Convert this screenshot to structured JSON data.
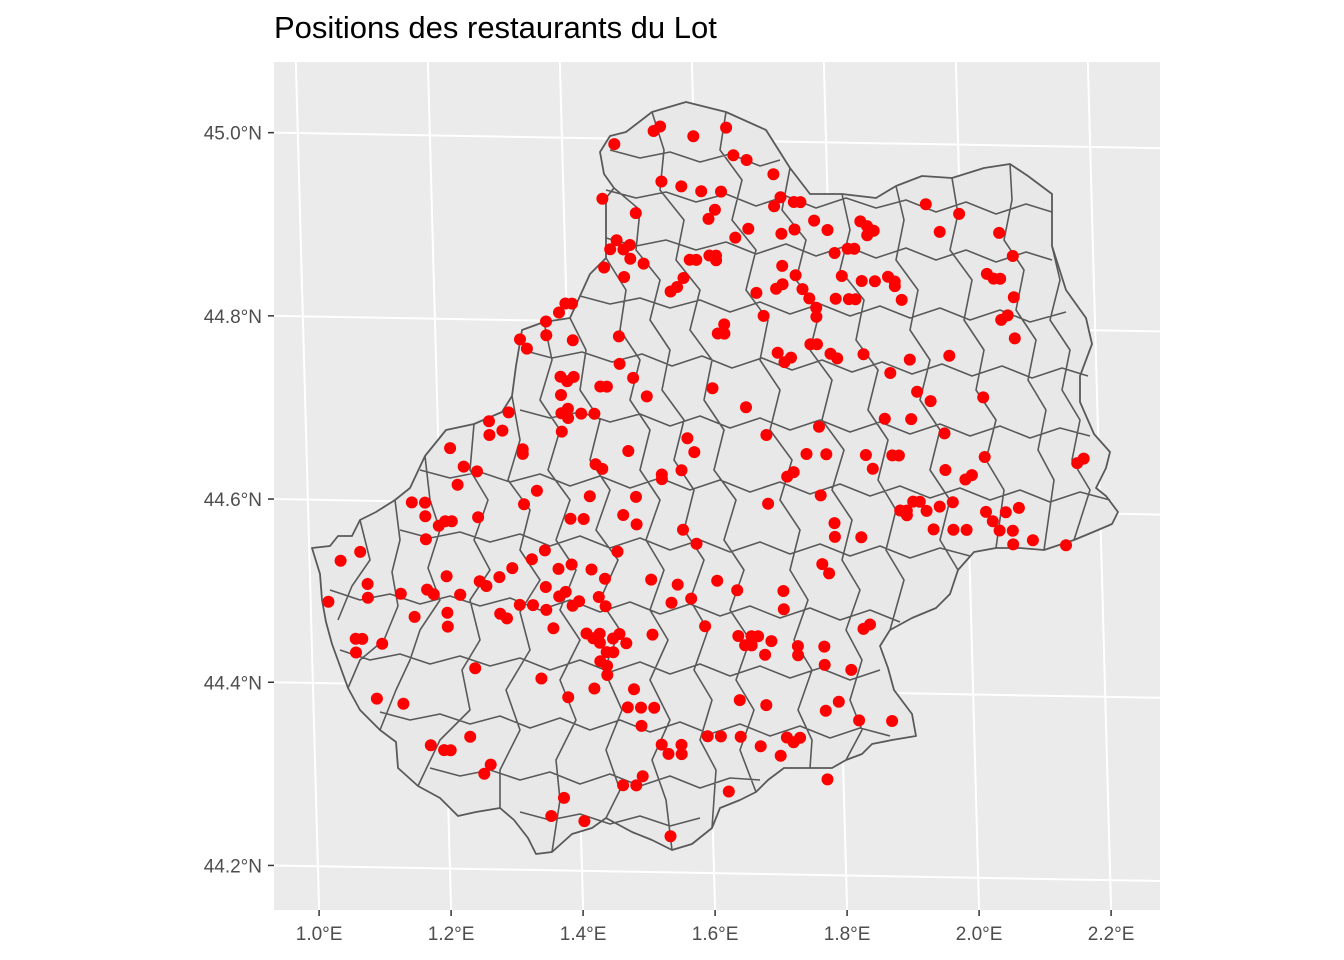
{
  "title": "Positions des restaurants du Lot",
  "colors": {
    "panel_background": "#ebebeb",
    "graticule": "#ffffff",
    "region_fill": "#e8e8e8",
    "region_border": "#595959",
    "points": "#ff0000",
    "tick_text": "#4d4d4d"
  },
  "chart_data": {
    "type": "scatter",
    "xlim": [
      0.95,
      2.27
    ],
    "ylim": [
      44.15,
      45.08
    ],
    "x_ticks": [
      {
        "value": 1.0,
        "label": "1.0°E"
      },
      {
        "value": 1.2,
        "label": "1.2°E"
      },
      {
        "value": 1.4,
        "label": "1.4°E"
      },
      {
        "value": 1.6,
        "label": "1.6°E"
      },
      {
        "value": 1.8,
        "label": "1.8°E"
      },
      {
        "value": 2.0,
        "label": "2.0°E"
      },
      {
        "value": 2.2,
        "label": "2.2°E"
      }
    ],
    "y_ticks": [
      {
        "value": 44.2,
        "label": "44.2°N"
      },
      {
        "value": 44.4,
        "label": "44.4°N"
      },
      {
        "value": 44.6,
        "label": "44.6°N"
      },
      {
        "value": 44.8,
        "label": "44.8°N"
      },
      {
        "value": 45.0,
        "label": "45.0°N"
      }
    ],
    "grid": true,
    "points": [
      [
        1.48,
        44.995
      ],
      [
        1.54,
        45.01
      ],
      [
        1.55,
        45.015
      ],
      [
        1.6,
        45.005
      ],
      [
        1.65,
        45.015
      ],
      [
        1.66,
        44.985
      ],
      [
        1.68,
        44.98
      ],
      [
        1.46,
        44.935
      ],
      [
        1.51,
        44.92
      ],
      [
        1.55,
        44.955
      ],
      [
        1.58,
        44.95
      ],
      [
        1.61,
        44.945
      ],
      [
        1.64,
        44.945
      ],
      [
        1.63,
        44.925
      ],
      [
        1.62,
        44.915
      ],
      [
        1.68,
        44.905
      ],
      [
        1.72,
        44.965
      ],
      [
        1.73,
        44.94
      ],
      [
        1.72,
        44.93
      ],
      [
        1.75,
        44.935
      ],
      [
        1.76,
        44.935
      ],
      [
        1.78,
        44.915
      ],
      [
        1.73,
        44.9
      ],
      [
        1.75,
        44.905
      ],
      [
        1.8,
        44.905
      ],
      [
        1.81,
        44.88
      ],
      [
        1.83,
        44.885
      ],
      [
        1.85,
        44.915
      ],
      [
        1.86,
        44.91
      ],
      [
        1.86,
        44.9
      ],
      [
        1.87,
        44.905
      ],
      [
        1.84,
        44.885
      ],
      [
        1.95,
        44.935
      ],
      [
        2.0,
        44.925
      ],
      [
        1.97,
        44.905
      ],
      [
        2.06,
        44.905
      ],
      [
        2.08,
        44.88
      ],
      [
        1.47,
        44.88
      ],
      [
        1.48,
        44.89
      ],
      [
        1.49,
        44.88
      ],
      [
        1.5,
        44.87
      ],
      [
        1.5,
        44.885
      ],
      [
        1.46,
        44.86
      ],
      [
        1.49,
        44.85
      ],
      [
        1.52,
        44.865
      ],
      [
        1.56,
        44.835
      ],
      [
        1.57,
        44.84
      ],
      [
        1.58,
        44.85
      ],
      [
        1.59,
        44.87
      ],
      [
        1.6,
        44.87
      ],
      [
        1.62,
        44.875
      ],
      [
        1.63,
        44.875
      ],
      [
        1.63,
        44.87
      ],
      [
        1.66,
        44.895
      ],
      [
        1.73,
        44.865
      ],
      [
        1.72,
        44.84
      ],
      [
        1.73,
        44.845
      ],
      [
        1.75,
        44.855
      ],
      [
        1.76,
        44.84
      ],
      [
        1.77,
        44.83
      ],
      [
        1.78,
        44.82
      ],
      [
        1.78,
        44.81
      ],
      [
        1.81,
        44.83
      ],
      [
        1.82,
        44.855
      ],
      [
        1.83,
        44.83
      ],
      [
        1.84,
        44.83
      ],
      [
        1.85,
        44.85
      ],
      [
        1.87,
        44.85
      ],
      [
        1.89,
        44.855
      ],
      [
        1.9,
        44.85
      ],
      [
        1.9,
        44.845
      ],
      [
        1.91,
        44.83
      ],
      [
        2.04,
        44.86
      ],
      [
        2.05,
        44.855
      ],
      [
        2.06,
        44.855
      ],
      [
        2.08,
        44.835
      ],
      [
        2.07,
        44.815
      ],
      [
        2.06,
        44.81
      ],
      [
        2.08,
        44.79
      ],
      [
        1.39,
        44.81
      ],
      [
        1.4,
        44.82
      ],
      [
        1.41,
        44.82
      ],
      [
        1.37,
        44.8
      ],
      [
        1.33,
        44.78
      ],
      [
        1.34,
        44.77
      ],
      [
        1.37,
        44.785
      ],
      [
        1.41,
        44.78
      ],
      [
        1.48,
        44.785
      ],
      [
        1.63,
        44.79
      ],
      [
        1.64,
        44.8
      ],
      [
        1.64,
        44.79
      ],
      [
        1.69,
        44.835
      ],
      [
        1.7,
        44.81
      ],
      [
        1.72,
        44.77
      ],
      [
        1.73,
        44.76
      ],
      [
        1.74,
        44.765
      ],
      [
        1.77,
        44.78
      ],
      [
        1.78,
        44.78
      ],
      [
        1.8,
        44.77
      ],
      [
        1.81,
        44.765
      ],
      [
        1.85,
        44.77
      ],
      [
        1.39,
        44.74
      ],
      [
        1.39,
        44.72
      ],
      [
        1.4,
        44.735
      ],
      [
        1.41,
        44.74
      ],
      [
        1.45,
        44.73
      ],
      [
        1.46,
        44.73
      ],
      [
        1.48,
        44.755
      ],
      [
        1.5,
        44.74
      ],
      [
        1.52,
        44.72
      ],
      [
        1.4,
        44.705
      ],
      [
        1.42,
        44.7
      ],
      [
        1.44,
        44.7
      ],
      [
        1.4,
        44.695
      ],
      [
        1.62,
        44.73
      ],
      [
        1.67,
        44.71
      ],
      [
        1.7,
        44.68
      ],
      [
        1.78,
        44.69
      ],
      [
        1.88,
        44.7
      ],
      [
        1.89,
        44.75
      ],
      [
        1.92,
        44.765
      ],
      [
        1.93,
        44.73
      ],
      [
        1.92,
        44.7
      ],
      [
        1.95,
        44.72
      ],
      [
        1.97,
        44.685
      ],
      [
        1.98,
        44.77
      ],
      [
        2.03,
        44.725
      ],
      [
        1.28,
        44.69
      ],
      [
        1.28,
        44.675
      ],
      [
        1.3,
        44.68
      ],
      [
        1.31,
        44.7
      ],
      [
        1.33,
        44.66
      ],
      [
        1.33,
        44.655
      ],
      [
        1.39,
        44.68
      ],
      [
        1.39,
        44.7
      ],
      [
        1.22,
        44.66
      ],
      [
        1.24,
        44.64
      ],
      [
        1.26,
        44.635
      ],
      [
        1.44,
        44.645
      ],
      [
        1.45,
        44.64
      ],
      [
        1.49,
        44.66
      ],
      [
        1.54,
        44.635
      ],
      [
        1.54,
        44.63
      ],
      [
        1.57,
        44.64
      ],
      [
        1.58,
        44.675
      ],
      [
        1.59,
        44.66
      ],
      [
        1.73,
        44.635
      ],
      [
        1.76,
        44.66
      ],
      [
        1.79,
        44.66
      ],
      [
        1.85,
        44.66
      ],
      [
        1.89,
        44.66
      ],
      [
        1.9,
        44.66
      ],
      [
        1.86,
        44.645
      ],
      [
        1.97,
        44.645
      ],
      [
        2.0,
        44.635
      ],
      [
        2.01,
        44.64
      ],
      [
        2.03,
        44.66
      ],
      [
        2.17,
        44.655
      ],
      [
        2.18,
        44.66
      ],
      [
        1.16,
        44.6
      ],
      [
        1.18,
        44.6
      ],
      [
        1.18,
        44.585
      ],
      [
        1.2,
        44.575
      ],
      [
        1.21,
        44.58
      ],
      [
        1.22,
        44.58
      ],
      [
        1.23,
        44.62
      ],
      [
        1.26,
        44.585
      ],
      [
        1.33,
        44.6
      ],
      [
        1.35,
        44.615
      ],
      [
        1.43,
        44.61
      ],
      [
        1.4,
        44.585
      ],
      [
        1.42,
        44.585
      ],
      [
        1.48,
        44.59
      ],
      [
        1.5,
        44.61
      ],
      [
        1.5,
        44.58
      ],
      [
        1.57,
        44.575
      ],
      [
        1.59,
        44.56
      ],
      [
        1.7,
        44.605
      ],
      [
        1.74,
        44.64
      ],
      [
        1.78,
        44.615
      ],
      [
        1.8,
        44.585
      ],
      [
        1.8,
        44.57
      ],
      [
        1.84,
        44.57
      ],
      [
        1.9,
        44.6
      ],
      [
        1.91,
        44.595
      ],
      [
        1.91,
        44.6
      ],
      [
        1.92,
        44.61
      ],
      [
        1.93,
        44.61
      ],
      [
        1.94,
        44.6
      ],
      [
        1.95,
        44.58
      ],
      [
        1.96,
        44.605
      ],
      [
        1.98,
        44.61
      ],
      [
        1.98,
        44.58
      ],
      [
        2.0,
        44.58
      ],
      [
        2.03,
        44.6
      ],
      [
        2.04,
        44.59
      ],
      [
        2.05,
        44.58
      ],
      [
        2.06,
        44.6
      ],
      [
        2.08,
        44.605
      ],
      [
        2.07,
        44.58
      ],
      [
        2.07,
        44.565
      ],
      [
        2.1,
        44.57
      ],
      [
        2.15,
        44.565
      ],
      [
        1.08,
        44.545
      ],
      [
        1.05,
        44.535
      ],
      [
        1.09,
        44.51
      ],
      [
        1.09,
        44.495
      ],
      [
        1.14,
        44.5
      ],
      [
        1.18,
        44.56
      ],
      [
        1.18,
        44.505
      ],
      [
        1.19,
        44.5
      ],
      [
        1.21,
        44.52
      ],
      [
        1.23,
        44.5
      ],
      [
        1.26,
        44.515
      ],
      [
        1.27,
        44.51
      ],
      [
        1.29,
        44.52
      ],
      [
        1.31,
        44.53
      ],
      [
        1.34,
        44.54
      ],
      [
        1.36,
        44.55
      ],
      [
        1.36,
        44.51
      ],
      [
        1.38,
        44.53
      ],
      [
        1.4,
        44.535
      ],
      [
        1.43,
        44.53
      ],
      [
        1.47,
        44.55
      ],
      [
        1.52,
        44.52
      ],
      [
        1.56,
        44.515
      ],
      [
        1.62,
        44.52
      ],
      [
        1.65,
        44.51
      ],
      [
        1.72,
        44.51
      ],
      [
        1.78,
        44.54
      ],
      [
        1.79,
        44.53
      ],
      [
        1.03,
        44.49
      ],
      [
        1.07,
        44.45
      ],
      [
        1.08,
        44.45
      ],
      [
        1.07,
        44.435
      ],
      [
        1.11,
        44.445
      ],
      [
        1.16,
        44.475
      ],
      [
        1.21,
        44.48
      ],
      [
        1.21,
        44.465
      ],
      [
        1.23,
        44.5
      ],
      [
        1.29,
        44.48
      ],
      [
        1.3,
        44.475
      ],
      [
        1.32,
        44.49
      ],
      [
        1.34,
        44.49
      ],
      [
        1.36,
        44.485
      ],
      [
        1.37,
        44.465
      ],
      [
        1.38,
        44.5
      ],
      [
        1.39,
        44.505
      ],
      [
        1.4,
        44.49
      ],
      [
        1.41,
        44.495
      ],
      [
        1.44,
        44.5
      ],
      [
        1.45,
        44.52
      ],
      [
        1.45,
        44.49
      ],
      [
        1.42,
        44.46
      ],
      [
        1.43,
        44.455
      ],
      [
        1.44,
        44.46
      ],
      [
        1.44,
        44.45
      ],
      [
        1.45,
        44.44
      ],
      [
        1.44,
        44.43
      ],
      [
        1.45,
        44.425
      ],
      [
        1.46,
        44.44
      ],
      [
        1.46,
        44.455
      ],
      [
        1.47,
        44.46
      ],
      [
        1.48,
        44.45
      ],
      [
        1.45,
        44.415
      ],
      [
        1.52,
        44.46
      ],
      [
        1.55,
        44.495
      ],
      [
        1.58,
        44.5
      ],
      [
        1.6,
        44.47
      ],
      [
        1.65,
        44.46
      ],
      [
        1.66,
        44.45
      ],
      [
        1.67,
        44.46
      ],
      [
        1.68,
        44.46
      ],
      [
        1.67,
        44.45
      ],
      [
        1.69,
        44.44
      ],
      [
        1.7,
        44.455
      ],
      [
        1.74,
        44.45
      ],
      [
        1.74,
        44.44
      ],
      [
        1.72,
        44.49
      ],
      [
        1.78,
        44.45
      ],
      [
        1.78,
        44.43
      ],
      [
        1.82,
        44.425
      ],
      [
        1.84,
        44.47
      ],
      [
        1.85,
        44.475
      ],
      [
        1.25,
        44.42
      ],
      [
        1.35,
        44.41
      ],
      [
        1.39,
        44.39
      ],
      [
        1.43,
        44.4
      ],
      [
        1.49,
        44.4
      ],
      [
        1.48,
        44.38
      ],
      [
        1.5,
        44.38
      ],
      [
        1.52,
        44.38
      ],
      [
        1.65,
        44.39
      ],
      [
        1.69,
        44.385
      ],
      [
        1.72,
        44.35
      ],
      [
        1.73,
        44.345
      ],
      [
        1.74,
        44.35
      ],
      [
        1.78,
        44.38
      ],
      [
        1.8,
        44.39
      ],
      [
        1.83,
        44.37
      ],
      [
        1.88,
        44.37
      ],
      [
        1.5,
        44.36
      ],
      [
        1.53,
        44.34
      ],
      [
        1.54,
        44.33
      ],
      [
        1.6,
        44.35
      ],
      [
        1.62,
        44.35
      ],
      [
        1.65,
        44.35
      ],
      [
        1.68,
        44.34
      ],
      [
        1.18,
        44.335
      ],
      [
        1.2,
        44.33
      ],
      [
        1.21,
        44.33
      ],
      [
        1.24,
        44.345
      ],
      [
        1.27,
        44.315
      ],
      [
        1.26,
        44.305
      ],
      [
        1.38,
        44.28
      ],
      [
        1.47,
        44.295
      ],
      [
        1.49,
        44.295
      ],
      [
        1.5,
        44.305
      ],
      [
        1.63,
        44.29
      ],
      [
        1.78,
        44.305
      ],
      [
        1.56,
        44.34
      ],
      [
        1.56,
        44.33
      ],
      [
        1.1,
        44.385
      ],
      [
        1.14,
        44.38
      ],
      [
        1.36,
        44.26
      ],
      [
        1.41,
        44.255
      ],
      [
        1.54,
        44.24
      ],
      [
        1.71,
        44.33
      ]
    ]
  }
}
